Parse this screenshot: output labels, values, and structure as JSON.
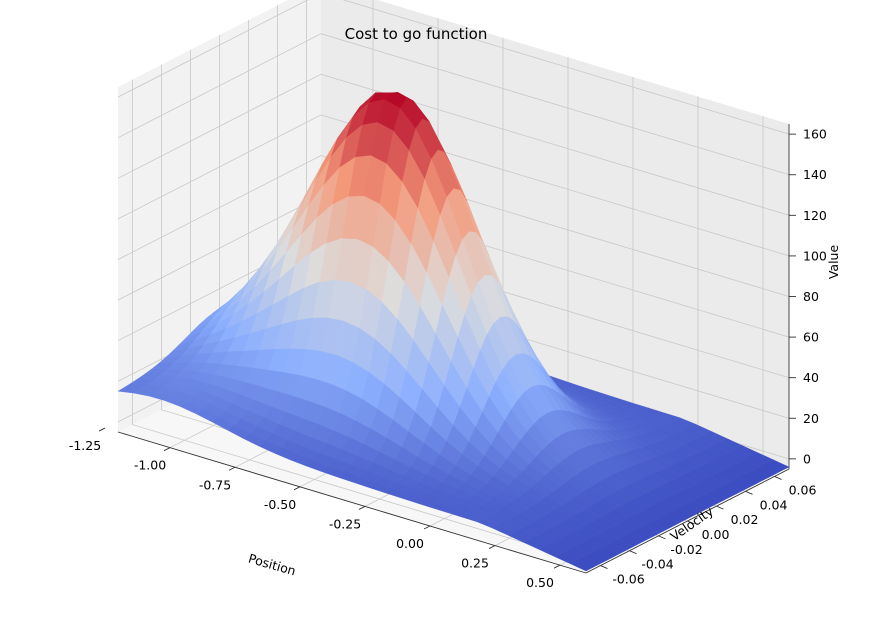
{
  "chart_data": {
    "type": "surface3d",
    "title": "Cost to go function",
    "xlabel": "Position",
    "ylabel": "Velocity",
    "zlabel": "Value",
    "xlim": [
      -1.2,
      0.6
    ],
    "ylim": [
      -0.07,
      0.07
    ],
    "zlim": [
      -5,
      165
    ],
    "x_ticks": [
      "-1.25",
      "-1.00",
      "-0.75",
      "-0.50",
      "-0.25",
      "0.00",
      "0.25",
      "0.50"
    ],
    "y_ticks": [
      "-0.06",
      "-0.04",
      "-0.02",
      "0.00",
      "0.02",
      "0.04",
      "0.06"
    ],
    "z_ticks": [
      "0",
      "20",
      "40",
      "60",
      "80",
      "100",
      "120",
      "140",
      "160"
    ],
    "colormap": "coolwarm",
    "grid": true,
    "surface_peak": {
      "position": -0.5,
      "velocity": 0.0,
      "value": 160
    },
    "surface_corners": [
      {
        "position": -1.2,
        "velocity": -0.07,
        "value": 12
      },
      {
        "position": 0.6,
        "velocity": -0.07,
        "value": -2
      },
      {
        "position": 0.6,
        "velocity": 0.07,
        "value": 0
      },
      {
        "position": -1.2,
        "velocity": 0.07,
        "value": 30
      }
    ]
  }
}
